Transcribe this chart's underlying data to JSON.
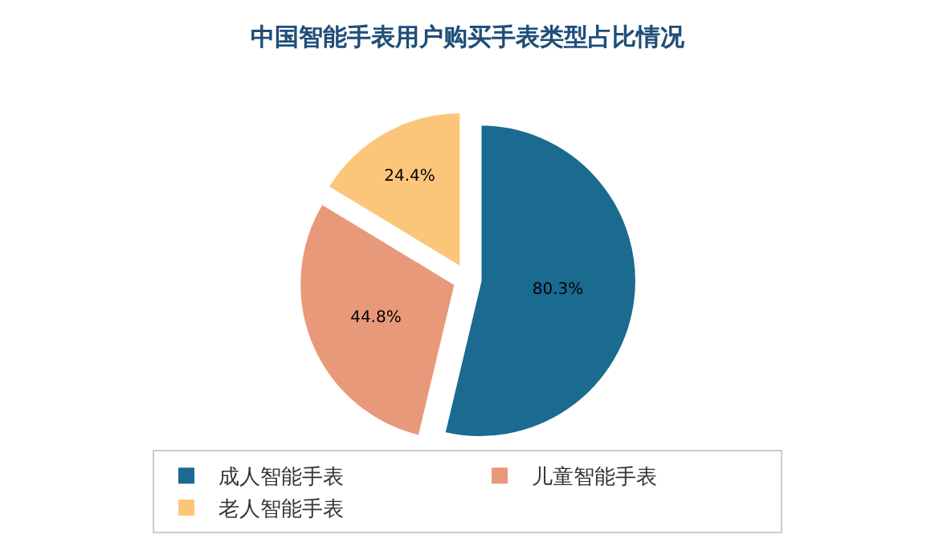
{
  "chart_data": {
    "type": "pie",
    "title": "中国智能手表用户购买手表类型占比情况",
    "categories": [
      "成人智能手表",
      "儿童智能手表",
      "老人智能手表"
    ],
    "values": [
      80.3,
      44.8,
      24.4
    ],
    "colors": [
      "#1b6a8f",
      "#e8997a",
      "#fcc67a"
    ],
    "value_labels": [
      "80.3%",
      "44.8%",
      "24.4%"
    ],
    "legend": "bottom"
  }
}
